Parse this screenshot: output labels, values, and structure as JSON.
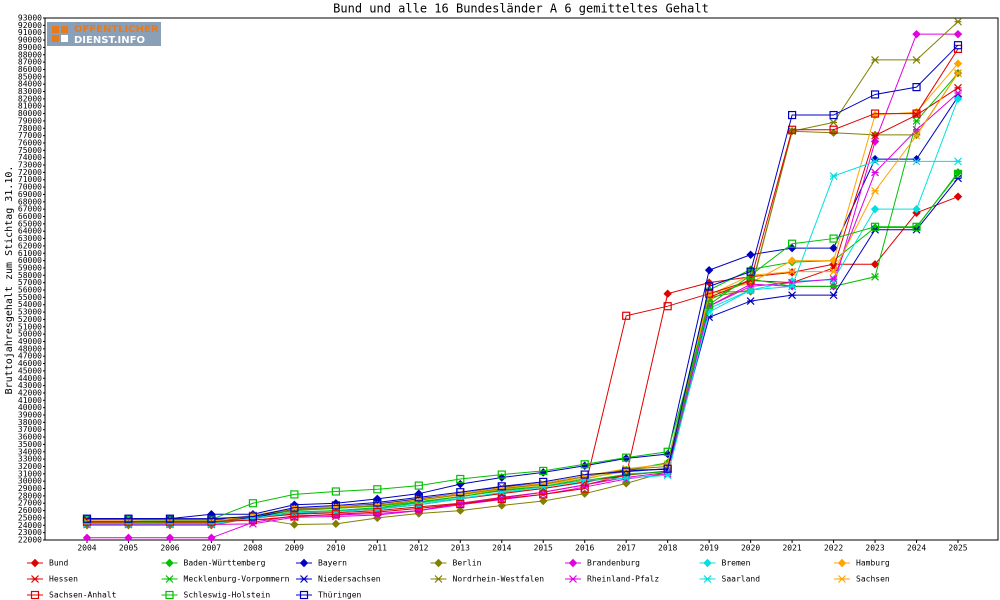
{
  "logo": {
    "line1": "ÖFFENTLICHER",
    "line2": "DIENST.INFO"
  },
  "chart_data": {
    "type": "line",
    "title": "Bund und alle 16 Bundesländer A 6 gemitteltes Gehalt",
    "y_label": "Bruttojahresgehalt zum Stichtag 31.10.",
    "categories": [
      "2004",
      "2005",
      "2006",
      "2007",
      "2008",
      "2009",
      "2010",
      "2011",
      "2012",
      "2013",
      "2014",
      "2015",
      "2016",
      "2017",
      "2018",
      "2019",
      "2020",
      "2021",
      "2022",
      "2023",
      "2024",
      "2025"
    ],
    "ylim": [
      22000,
      93000
    ],
    "yticks": [
      22000,
      23000,
      24000,
      25000,
      26000,
      27000,
      28000,
      29000,
      30000,
      31000,
      32000,
      33000,
      34000,
      35000,
      36000,
      37000,
      38000,
      39000,
      40000,
      41000,
      42000,
      43000,
      44000,
      45000,
      46000,
      47000,
      48000,
      49000,
      50000,
      51000,
      52000,
      53000,
      54000,
      55000,
      56000,
      57000,
      58000,
      59000,
      60000,
      61000,
      62000,
      63000,
      64000,
      65000,
      66000,
      67000,
      68000,
      69000,
      70000,
      71000,
      72000,
      73000,
      74000,
      75000,
      76000,
      77000,
      78000,
      79000,
      80000,
      81000,
      82000,
      83000,
      84000,
      85000,
      86000,
      87000,
      88000,
      89000,
      90000,
      91000,
      92000,
      93000
    ],
    "grid": false,
    "series": [
      {
        "name": "Bund",
        "color": "#e00000",
        "marker": "diamond",
        "values": [
          24600,
          24600,
          24500,
          24500,
          25000,
          25500,
          25700,
          26000,
          26500,
          27000,
          27800,
          28500,
          29500,
          30800,
          55500,
          57000,
          57800,
          58400,
          59500,
          59500,
          66500,
          68700
        ]
      },
      {
        "name": "Baden-Württemberg",
        "color": "#00c000",
        "marker": "diamond",
        "values": [
          24800,
          24800,
          24700,
          24700,
          25200,
          26000,
          26300,
          26600,
          27200,
          27900,
          28700,
          29300,
          30300,
          31500,
          32500,
          56000,
          58800,
          59800,
          60000,
          64500,
          64500,
          72000
        ]
      },
      {
        "name": "Bayern",
        "color": "#0000c0",
        "marker": "diamond",
        "values": [
          24900,
          24900,
          24900,
          25500,
          25500,
          26800,
          27000,
          27600,
          28300,
          29600,
          30500,
          31200,
          32100,
          33100,
          33700,
          58700,
          60800,
          61700,
          61700,
          73800,
          73800,
          82300
        ]
      },
      {
        "name": "Berlin",
        "color": "#808000",
        "marker": "diamond",
        "values": [
          24000,
          24000,
          24000,
          24000,
          25000,
          24100,
          24200,
          25000,
          25600,
          26000,
          26700,
          27300,
          28300,
          29700,
          31300,
          55700,
          55800,
          77600,
          77400,
          77100,
          77100,
          85500
        ]
      },
      {
        "name": "Brandenburg",
        "color": "#e000e0",
        "marker": "diamond",
        "values": [
          22300,
          22300,
          22300,
          22300,
          24400,
          25300,
          25400,
          25600,
          26000,
          27000,
          27700,
          28500,
          29500,
          30500,
          31200,
          53800,
          56800,
          56500,
          56500,
          76200,
          90800,
          90800
        ]
      },
      {
        "name": "Bremen",
        "color": "#00e0e0",
        "marker": "diamond",
        "values": [
          24800,
          24800,
          24600,
          24600,
          25100,
          25800,
          26000,
          26300,
          27000,
          27700,
          28400,
          29000,
          29800,
          31000,
          31300,
          53500,
          56000,
          57200,
          57400,
          67000,
          67000,
          82000
        ]
      },
      {
        "name": "Hamburg",
        "color": "#ffa500",
        "marker": "diamond",
        "values": [
          24600,
          24600,
          24600,
          24600,
          25300,
          26200,
          26400,
          26700,
          27400,
          28100,
          28900,
          29500,
          30400,
          31300,
          31700,
          55500,
          57000,
          60000,
          60000,
          79800,
          80200,
          86800
        ]
      },
      {
        "name": "Hessen",
        "color": "#e00000",
        "marker": "x",
        "values": [
          24400,
          24400,
          24400,
          24400,
          25000,
          25600,
          25900,
          26200,
          26800,
          27600,
          28300,
          29000,
          29900,
          30800,
          31400,
          55000,
          57300,
          57000,
          59000,
          77000,
          79800,
          83500
        ]
      },
      {
        "name": "Mecklenburg-Vorpommern",
        "color": "#00c000",
        "marker": "x",
        "values": [
          24500,
          24500,
          24300,
          24300,
          25000,
          25800,
          26000,
          26400,
          27100,
          27900,
          28800,
          29300,
          30100,
          30900,
          31300,
          54600,
          57500,
          56500,
          56500,
          57800,
          79000,
          85500
        ]
      },
      {
        "name": "Niedersachsen",
        "color": "#0000c0",
        "marker": "x",
        "values": [
          24800,
          24800,
          24800,
          24800,
          25000,
          26200,
          26500,
          26900,
          27600,
          28300,
          29200,
          29700,
          30700,
          31500,
          31600,
          52300,
          54500,
          55300,
          55300,
          64200,
          64200,
          71200
        ]
      },
      {
        "name": "Nordrhein-Westfalen",
        "color": "#808000",
        "marker": "x",
        "values": [
          24300,
          24300,
          24300,
          24300,
          25300,
          26100,
          26400,
          26700,
          27400,
          28200,
          29000,
          29600,
          30600,
          31600,
          32000,
          55000,
          56000,
          77600,
          78800,
          87300,
          87300,
          92500
        ]
      },
      {
        "name": "Rheinland-Pfalz",
        "color": "#e000e0",
        "marker": "x",
        "values": [
          24100,
          24100,
          24100,
          24100,
          24200,
          25100,
          25200,
          25400,
          26000,
          26800,
          27500,
          28200,
          29200,
          30300,
          31000,
          53800,
          56500,
          57000,
          57500,
          72000,
          77800,
          82800
        ]
      },
      {
        "name": "Saarland",
        "color": "#00e0e0",
        "marker": "x",
        "values": [
          24200,
          24200,
          24200,
          24200,
          25000,
          25700,
          25900,
          26200,
          26800,
          27600,
          28500,
          29200,
          30100,
          30400,
          30800,
          53000,
          56000,
          56500,
          71500,
          73500,
          73500,
          73500
        ]
      },
      {
        "name": "Sachsen",
        "color": "#ffa500",
        "marker": "x",
        "values": [
          24500,
          24500,
          24500,
          24500,
          25400,
          26300,
          26500,
          26800,
          27500,
          28300,
          29100,
          29700,
          30700,
          31700,
          32300,
          55300,
          58000,
          58500,
          58500,
          69500,
          77000,
          85500
        ]
      },
      {
        "name": "Sachsen-Anhalt",
        "color": "#e00000",
        "marker": "square",
        "values": [
          24500,
          24500,
          24500,
          24500,
          24700,
          25200,
          25500,
          25800,
          26300,
          26900,
          27600,
          28200,
          29000,
          52500,
          53800,
          55500,
          57300,
          77800,
          77800,
          80000,
          80000,
          88800
        ]
      },
      {
        "name": "Schleswig-Holstein",
        "color": "#00c000",
        "marker": "square",
        "values": [
          24800,
          24800,
          24800,
          24800,
          27000,
          28200,
          28600,
          28900,
          29400,
          30300,
          30900,
          31400,
          32300,
          33200,
          34000,
          54000,
          58000,
          62300,
          63000,
          64600,
          64600,
          71800
        ]
      },
      {
        "name": "Thüringen",
        "color": "#0000c0",
        "marker": "square",
        "values": [
          24900,
          24900,
          24900,
          24900,
          25200,
          26400,
          26700,
          27100,
          27800,
          28500,
          29300,
          29900,
          30900,
          31300,
          31700,
          56500,
          58500,
          79800,
          79800,
          82600,
          83600,
          89300
        ]
      }
    ]
  }
}
